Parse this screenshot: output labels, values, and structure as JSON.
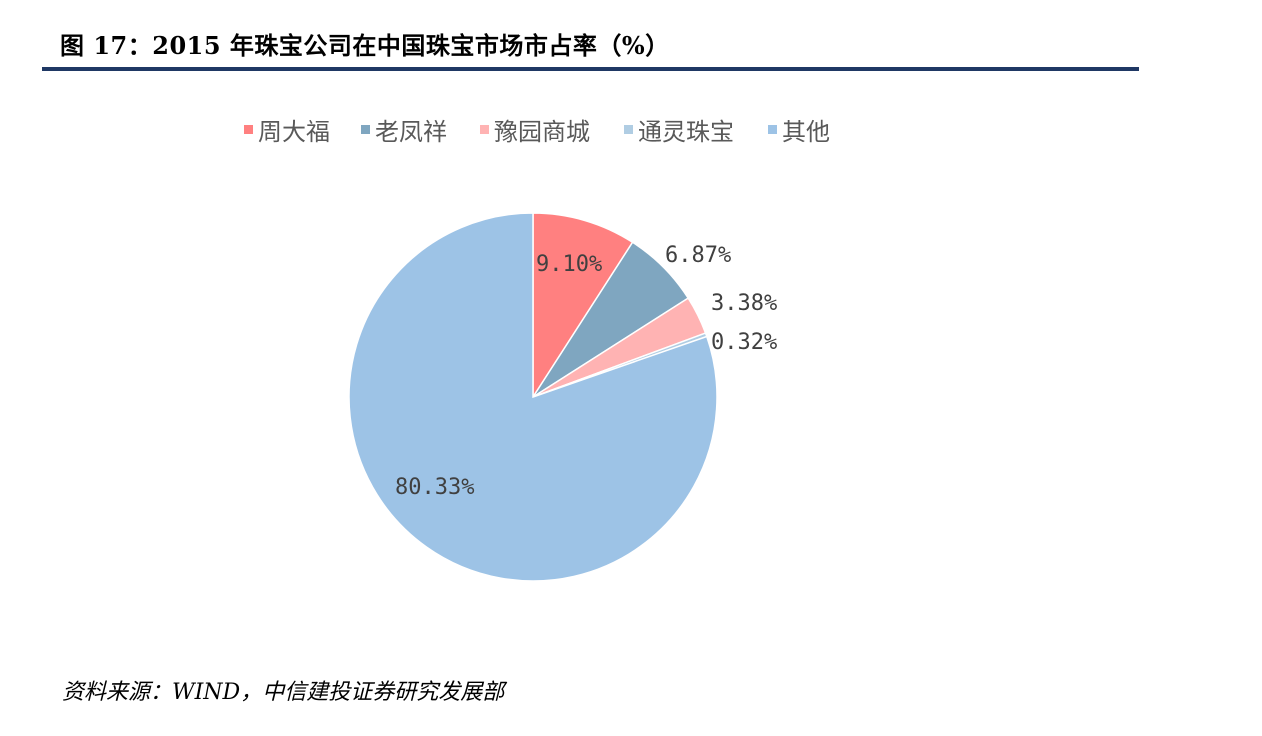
{
  "figure": {
    "title": "图 17：2015 年珠宝公司在中国珠宝市场市占率（%）",
    "source": "资料来源：WIND，中信建投证券研究发展部"
  },
  "chart_data": {
    "type": "pie",
    "title": "",
    "labels": [
      "周大福",
      "老凤祥",
      "豫园商城",
      "通灵珠宝",
      "其他"
    ],
    "values": [
      9.1,
      6.87,
      3.38,
      0.32,
      80.33
    ],
    "value_labels": [
      "9.10%",
      "6.87%",
      "3.38%",
      "0.32%",
      "80.33%"
    ],
    "colors": [
      "#ff8080",
      "#7fa6c0",
      "#ffb3b3",
      "#b0cde3",
      "#9dc3e6"
    ],
    "start_angle": "12 o'clock",
    "direction": "clockwise",
    "legend_position": "top"
  }
}
